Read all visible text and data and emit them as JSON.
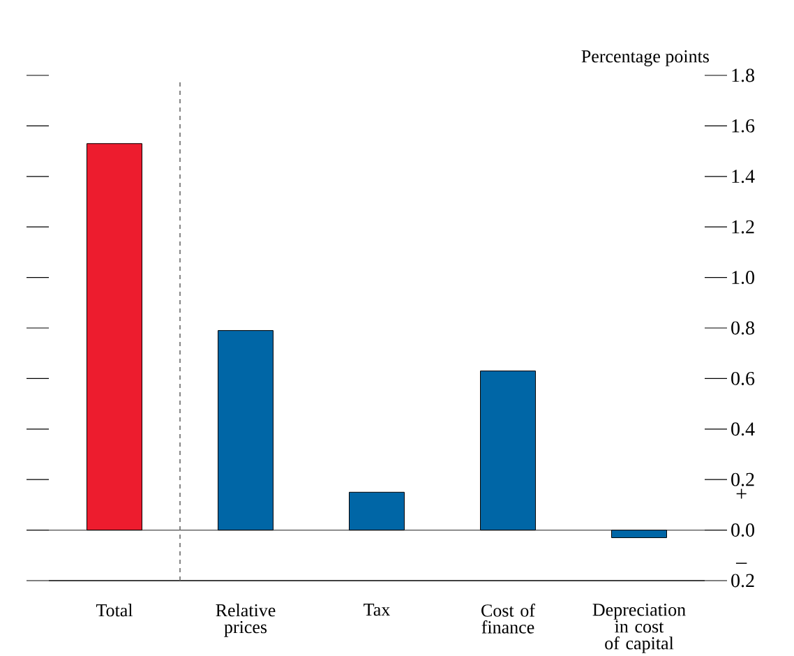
{
  "chart_data": {
    "type": "bar",
    "ylabel": "Percentage points",
    "categories": [
      "Total",
      "Relative prices",
      "Tax",
      "Cost of finance",
      "Depreciation in cost of capital"
    ],
    "values": [
      1.53,
      0.79,
      0.15,
      0.63,
      -0.03
    ],
    "colors": [
      "#ed1c2e",
      "#0066a6",
      "#0066a6",
      "#0066a6",
      "#0066a6"
    ],
    "ylim": [
      -0.2,
      1.8
    ],
    "yticks": [
      {
        "value": -0.2,
        "label": "0.2"
      },
      {
        "value": 0,
        "label": "0.0"
      },
      0.2,
      0.4,
      0.6,
      0.8,
      {
        "value": 1,
        "label": "1.0"
      },
      1.2,
      1.4,
      1.6,
      1.8
    ],
    "ref_lines": [
      {
        "axis": "y",
        "value": 0,
        "line_style": "solid"
      }
    ],
    "annotations": [
      "+",
      "–"
    ],
    "grid": false
  }
}
